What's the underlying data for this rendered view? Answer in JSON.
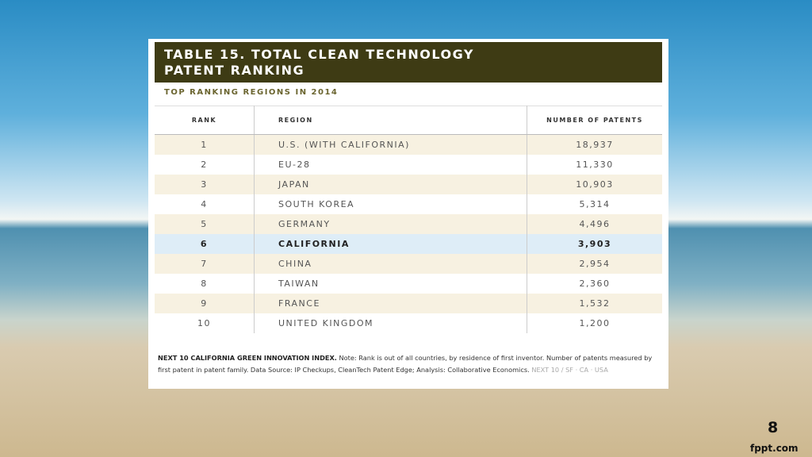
{
  "header": {
    "title_lines": [
      "TABLE 15. TOTAL CLEAN TECHNOLOGY",
      "PATENT RANKING"
    ],
    "subtitle": "TOP RANKING REGIONS IN 2014"
  },
  "table": {
    "columns": [
      "RANK",
      "REGION",
      "NUMBER OF PATENTS"
    ],
    "rows": [
      [
        "1",
        "U.S. (WITH CALIFORNIA)",
        "18,937"
      ],
      [
        "2",
        "EU-28",
        "11,330"
      ],
      [
        "3",
        "JAPAN",
        "10,903"
      ],
      [
        "4",
        "SOUTH KOREA",
        "5,314"
      ],
      [
        "5",
        "GERMANY",
        "4,496"
      ],
      [
        "6",
        "CALIFORNIA",
        "3,903"
      ],
      [
        "7",
        "CHINA",
        "2,954"
      ],
      [
        "8",
        "TAIWAN",
        "2,360"
      ],
      [
        "9",
        "FRANCE",
        "1,532"
      ],
      [
        "10",
        "UNITED KINGDOM",
        "1,200"
      ]
    ]
  },
  "footnote": {
    "source": "NEXT 10 CALIFORNIA GREEN INNOVATION INDEX.",
    "text": " Note: Rank is out of all countries, by residence of first inventor. Number of patents measured by first patent in patent family. Data Source: IP Checkups, CleanTech Patent Edge; Analysis: Collaborative Economics.",
    "mark": " NEXT 10 / SF · CA · USA"
  },
  "slide": {
    "page_number": "8",
    "brand": "fppt.com"
  }
}
